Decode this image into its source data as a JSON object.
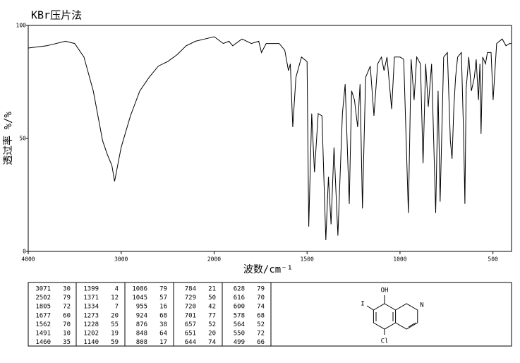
{
  "chart_data": {
    "type": "line",
    "title": "KBr压片法",
    "x_label": "波数/cm⁻¹",
    "y_label": "透过率 %/%",
    "xlim": [
      4000,
      400
    ],
    "x_scale_break": 2000,
    "xticks": [
      4000,
      3000,
      2000,
      1500,
      1000,
      500
    ],
    "ylim": [
      0,
      100
    ],
    "yticks": [
      0,
      50,
      100
    ],
    "color": "#000000",
    "x": [
      4000,
      3800,
      3600,
      3500,
      3400,
      3300,
      3200,
      3150,
      3100,
      3071,
      3000,
      2900,
      2800,
      2700,
      2600,
      2500,
      2400,
      2300,
      2200,
      2100,
      2000,
      1950,
      1920,
      1900,
      1850,
      1800,
      1760,
      1745,
      1720,
      1650,
      1620,
      1600,
      1590,
      1577,
      1560,
      1530,
      1500,
      1491,
      1475,
      1460,
      1440,
      1420,
      1399,
      1385,
      1371,
      1355,
      1334,
      1310,
      1295,
      1273,
      1260,
      1245,
      1228,
      1215,
      1202,
      1185,
      1160,
      1140,
      1120,
      1100,
      1086,
      1070,
      1045,
      1030,
      1000,
      980,
      955,
      940,
      924,
      910,
      890,
      876,
      862,
      848,
      830,
      808,
      795,
      784,
      765,
      745,
      729,
      720,
      710,
      701,
      690,
      670,
      657,
      651,
      644,
      630,
      616,
      600,
      590,
      578,
      570,
      564,
      555,
      540,
      530,
      510,
      499,
      480,
      450,
      430,
      410,
      400
    ],
    "values": [
      90,
      91,
      93,
      92,
      86,
      71,
      49,
      43,
      38,
      31,
      46,
      60,
      71,
      77,
      82,
      84,
      87,
      91,
      93,
      94,
      95,
      92,
      93,
      91,
      94,
      92,
      93,
      88,
      92,
      92,
      89,
      80,
      83,
      55,
      77,
      86,
      84,
      11,
      61,
      35,
      61,
      60,
      5,
      33,
      12,
      46,
      7,
      61,
      74,
      21,
      71,
      67,
      55,
      74,
      19,
      77,
      82,
      60,
      83,
      86,
      80,
      86,
      63,
      86,
      86,
      85,
      17,
      85,
      67,
      86,
      83,
      39,
      83,
      64,
      83,
      17,
      71,
      22,
      86,
      88,
      49,
      41,
      64,
      77,
      86,
      88,
      49,
      21,
      72,
      86,
      71,
      77,
      85,
      67,
      83,
      52,
      86,
      83,
      88,
      88,
      67,
      92,
      94,
      91,
      92,
      92
    ]
  },
  "peak_table": {
    "columns": [
      [
        [
          3071,
          30
        ],
        [
          2502,
          79
        ],
        [
          1805,
          72
        ],
        [
          1677,
          60
        ],
        [
          1562,
          70
        ],
        [
          1491,
          10
        ],
        [
          1460,
          35
        ]
      ],
      [
        [
          1399,
          4
        ],
        [
          1371,
          12
        ],
        [
          1334,
          7
        ],
        [
          1273,
          20
        ],
        [
          1228,
          55
        ],
        [
          1202,
          19
        ],
        [
          1140,
          59
        ]
      ],
      [
        [
          1086,
          79
        ],
        [
          1045,
          57
        ],
        [
          955,
          16
        ],
        [
          924,
          68
        ],
        [
          876,
          38
        ],
        [
          848,
          64
        ],
        [
          808,
          17
        ]
      ],
      [
        [
          784,
          21
        ],
        [
          729,
          50
        ],
        [
          720,
          42
        ],
        [
          701,
          77
        ],
        [
          657,
          52
        ],
        [
          651,
          20
        ],
        [
          644,
          74
        ]
      ],
      [
        [
          628,
          79
        ],
        [
          616,
          70
        ],
        [
          600,
          74
        ],
        [
          578,
          68
        ],
        [
          564,
          52
        ],
        [
          550,
          72
        ],
        [
          499,
          66
        ]
      ]
    ]
  },
  "structure": {
    "labels": [
      "OH",
      "I",
      "N",
      "Cl"
    ]
  }
}
